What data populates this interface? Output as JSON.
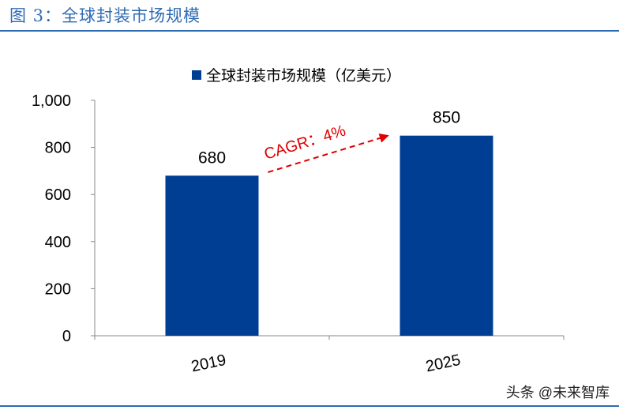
{
  "figure": {
    "title": "图 3：全球封装市场规模",
    "source": "头条 @未来智库"
  },
  "colors": {
    "title": "#2f6bb3",
    "bar": "#003e94",
    "annotation": "#e00000"
  },
  "chart_data": {
    "type": "bar",
    "title": "",
    "xlabel": "",
    "ylabel": "",
    "categories": [
      "2019",
      "2025"
    ],
    "series": [
      {
        "name": "全球封装市场规模（亿美元）",
        "values": [
          680,
          850
        ]
      }
    ],
    "data_labels": [
      "680",
      "850"
    ],
    "ylim": [
      0,
      1000
    ],
    "y_ticks": [
      {
        "value": 0,
        "label": "0"
      },
      {
        "value": 200,
        "label": "200"
      },
      {
        "value": 400,
        "label": "400"
      },
      {
        "value": 600,
        "label": "600"
      },
      {
        "value": 800,
        "label": "800"
      },
      {
        "value": 1000,
        "label": "1,000"
      }
    ],
    "grid": false,
    "legend_position": "top",
    "annotations": [
      {
        "text": "CAGR：4%",
        "type": "dashed-arrow",
        "from": "2019",
        "to": "2025"
      }
    ]
  }
}
